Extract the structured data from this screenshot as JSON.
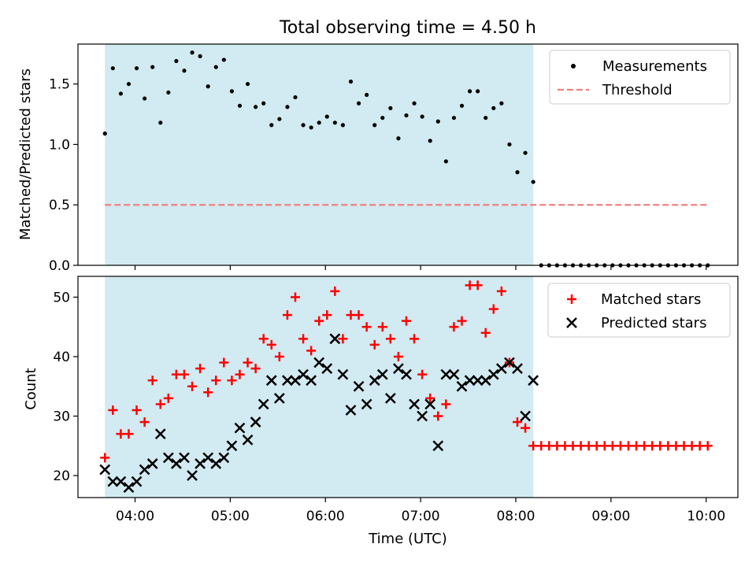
{
  "figure": {
    "title": "Total observing time = 4.50 h",
    "shade_color": "#add8e6"
  },
  "chart_data": [
    {
      "type": "scatter",
      "title": "Total observing time = 4.50 h",
      "xlabel": "",
      "ylabel": "Matched/Predicted stars",
      "xlim": [
        "03:24",
        "10:20"
      ],
      "ylim": [
        0,
        1.83
      ],
      "y_ticks": [
        0.0,
        0.5,
        1.0,
        1.5
      ],
      "y_tick_labels": [
        "0.0",
        "0.5",
        "1.0",
        "1.5"
      ],
      "shaded_span": [
        "03:41",
        "08:11"
      ],
      "legend": [
        "Measurements",
        "Threshold"
      ],
      "legend_position": "top-right",
      "grid": false,
      "series": [
        {
          "name": "Measurements",
          "kind": "points",
          "color": "#000000",
          "x": [
            "03:41",
            "03:46",
            "03:51",
            "03:56",
            "04:01",
            "04:06",
            "04:11",
            "04:16",
            "04:21",
            "04:26",
            "04:31",
            "04:36",
            "04:41",
            "04:46",
            "04:51",
            "04:56",
            "05:01",
            "05:06",
            "05:11",
            "05:16",
            "05:21",
            "05:26",
            "05:31",
            "05:36",
            "05:41",
            "05:46",
            "05:51",
            "05:56",
            "06:01",
            "06:06",
            "06:11",
            "06:16",
            "06:21",
            "06:26",
            "06:31",
            "06:36",
            "06:41",
            "06:46",
            "06:51",
            "06:56",
            "07:01",
            "07:06",
            "07:11",
            "07:16",
            "07:21",
            "07:26",
            "07:31",
            "07:36",
            "07:41",
            "07:46",
            "07:51",
            "07:56",
            "08:01",
            "08:06",
            "08:11",
            "08:16",
            "08:21",
            "08:26",
            "08:31",
            "08:36",
            "08:41",
            "08:46",
            "08:51",
            "08:56",
            "09:01",
            "09:06",
            "09:11",
            "09:16",
            "09:21",
            "09:26",
            "09:31",
            "09:36",
            "09:41",
            "09:46",
            "09:51",
            "09:56",
            "10:01"
          ],
          "y": [
            1.09,
            1.63,
            1.42,
            1.5,
            1.63,
            1.38,
            1.64,
            1.18,
            1.43,
            1.69,
            1.61,
            1.76,
            1.73,
            1.48,
            1.64,
            1.7,
            1.44,
            1.32,
            1.5,
            1.31,
            1.34,
            1.16,
            1.21,
            1.31,
            1.39,
            1.16,
            1.14,
            1.18,
            1.23,
            1.18,
            1.16,
            1.52,
            1.34,
            1.41,
            1.16,
            1.22,
            1.3,
            1.05,
            1.24,
            1.34,
            1.23,
            1.03,
            1.19,
            0.86,
            1.22,
            1.32,
            1.44,
            1.44,
            1.22,
            1.3,
            1.34,
            1.0,
            0.77,
            0.93,
            0.69,
            0,
            0,
            0,
            0,
            0,
            0,
            0,
            0,
            0,
            0,
            0,
            0,
            0,
            0,
            0,
            0,
            0,
            0,
            0,
            0,
            0,
            0
          ]
        },
        {
          "name": "Threshold",
          "kind": "dashed-line",
          "color": "#f08080",
          "x": [
            "03:41",
            "10:01"
          ],
          "y": [
            0.5,
            0.5
          ]
        }
      ]
    },
    {
      "type": "scatter",
      "xlabel": "Time (UTC)",
      "ylabel": "Count",
      "xlim": [
        "03:24",
        "10:20"
      ],
      "ylim": [
        16.3,
        53.5
      ],
      "x_ticks": [
        "04:00",
        "05:00",
        "06:00",
        "07:00",
        "08:00",
        "09:00",
        "10:00"
      ],
      "x_tick_labels": [
        "04:00",
        "05:00",
        "06:00",
        "07:00",
        "08:00",
        "09:00",
        "10:00"
      ],
      "y_ticks": [
        20,
        30,
        40,
        50
      ],
      "y_tick_labels": [
        "20",
        "30",
        "40",
        "50"
      ],
      "shaded_span": [
        "03:41",
        "08:11"
      ],
      "legend": [
        "Matched stars",
        "Predicted stars"
      ],
      "legend_position": "top-right",
      "grid": false,
      "series": [
        {
          "name": "Matched stars",
          "marker": "plus",
          "color": "#ff0000",
          "x": [
            "03:41",
            "03:46",
            "03:51",
            "03:56",
            "04:01",
            "04:06",
            "04:11",
            "04:16",
            "04:21",
            "04:26",
            "04:31",
            "04:36",
            "04:41",
            "04:46",
            "04:51",
            "04:56",
            "05:01",
            "05:06",
            "05:11",
            "05:16",
            "05:21",
            "05:26",
            "05:31",
            "05:36",
            "05:41",
            "05:46",
            "05:51",
            "05:56",
            "06:01",
            "06:06",
            "06:11",
            "06:16",
            "06:21",
            "06:26",
            "06:31",
            "06:36",
            "06:41",
            "06:46",
            "06:51",
            "06:56",
            "07:01",
            "07:06",
            "07:11",
            "07:16",
            "07:21",
            "07:26",
            "07:31",
            "07:36",
            "07:41",
            "07:46",
            "07:51",
            "07:56",
            "08:01",
            "08:06",
            "08:11",
            "08:16",
            "08:21",
            "08:26",
            "08:31",
            "08:36",
            "08:41",
            "08:46",
            "08:51",
            "08:56",
            "09:01",
            "09:06",
            "09:11",
            "09:16",
            "09:21",
            "09:26",
            "09:31",
            "09:36",
            "09:41",
            "09:46",
            "09:51",
            "09:56",
            "10:01"
          ],
          "y": [
            23,
            31,
            27,
            27,
            31,
            29,
            36,
            32,
            33,
            37,
            37,
            35,
            38,
            34,
            36,
            39,
            36,
            37,
            39,
            38,
            43,
            42,
            40,
            47,
            50,
            43,
            41,
            46,
            47,
            51,
            43,
            47,
            47,
            45,
            42,
            45,
            43,
            40,
            46,
            43,
            37,
            33,
            30,
            32,
            45,
            46,
            52,
            52,
            44,
            48,
            51,
            39,
            29,
            28,
            25,
            25,
            25,
            25,
            25,
            25,
            25,
            25,
            25,
            25,
            25,
            25,
            25,
            25,
            25,
            25,
            25,
            25,
            25,
            25,
            25,
            25,
            25
          ]
        },
        {
          "name": "Predicted stars",
          "marker": "x",
          "color": "#000000",
          "x": [
            "03:41",
            "03:46",
            "03:51",
            "03:56",
            "04:01",
            "04:06",
            "04:11",
            "04:16",
            "04:21",
            "04:26",
            "04:31",
            "04:36",
            "04:41",
            "04:46",
            "04:51",
            "04:56",
            "05:01",
            "05:06",
            "05:11",
            "05:16",
            "05:21",
            "05:26",
            "05:31",
            "05:36",
            "05:41",
            "05:46",
            "05:51",
            "05:56",
            "06:01",
            "06:06",
            "06:11",
            "06:16",
            "06:21",
            "06:26",
            "06:31",
            "06:36",
            "06:41",
            "06:46",
            "06:51",
            "06:56",
            "07:01",
            "07:06",
            "07:11",
            "07:16",
            "07:21",
            "07:26",
            "07:31",
            "07:36",
            "07:41",
            "07:46",
            "07:51",
            "07:56",
            "08:01",
            "08:06",
            "08:11"
          ],
          "y": [
            21,
            19,
            19,
            18,
            19,
            21,
            22,
            27,
            23,
            22,
            23,
            20,
            22,
            23,
            22,
            23,
            25,
            28,
            26,
            29,
            32,
            36,
            33,
            36,
            36,
            37,
            36,
            39,
            38,
            43,
            37,
            31,
            35,
            32,
            36,
            37,
            33,
            38,
            37,
            32,
            30,
            32,
            25,
            37,
            37,
            35,
            36,
            36,
            36,
            37,
            38,
            39,
            38,
            30,
            36
          ]
        }
      ]
    }
  ]
}
